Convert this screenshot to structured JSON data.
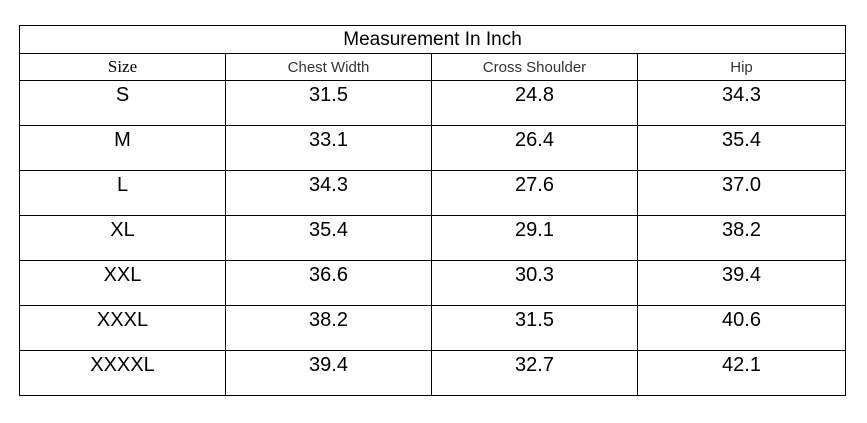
{
  "table": {
    "title": "Measurement In Inch",
    "columns": [
      "Size",
      "Chest Width",
      "Cross Shoulder",
      "Hip"
    ],
    "rows": [
      [
        "S",
        "31.5",
        "24.8",
        "34.3"
      ],
      [
        "M",
        "33.1",
        "26.4",
        "35.4"
      ],
      [
        "L",
        "34.3",
        "27.6",
        "37.0"
      ],
      [
        "XL",
        "35.4",
        "29.1",
        "38.2"
      ],
      [
        "XXL",
        "36.6",
        "30.3",
        "39.4"
      ],
      [
        "XXXL",
        "38.2",
        "31.5",
        "40.6"
      ],
      [
        "XXXXL",
        "39.4",
        "32.7",
        "42.1"
      ]
    ]
  }
}
